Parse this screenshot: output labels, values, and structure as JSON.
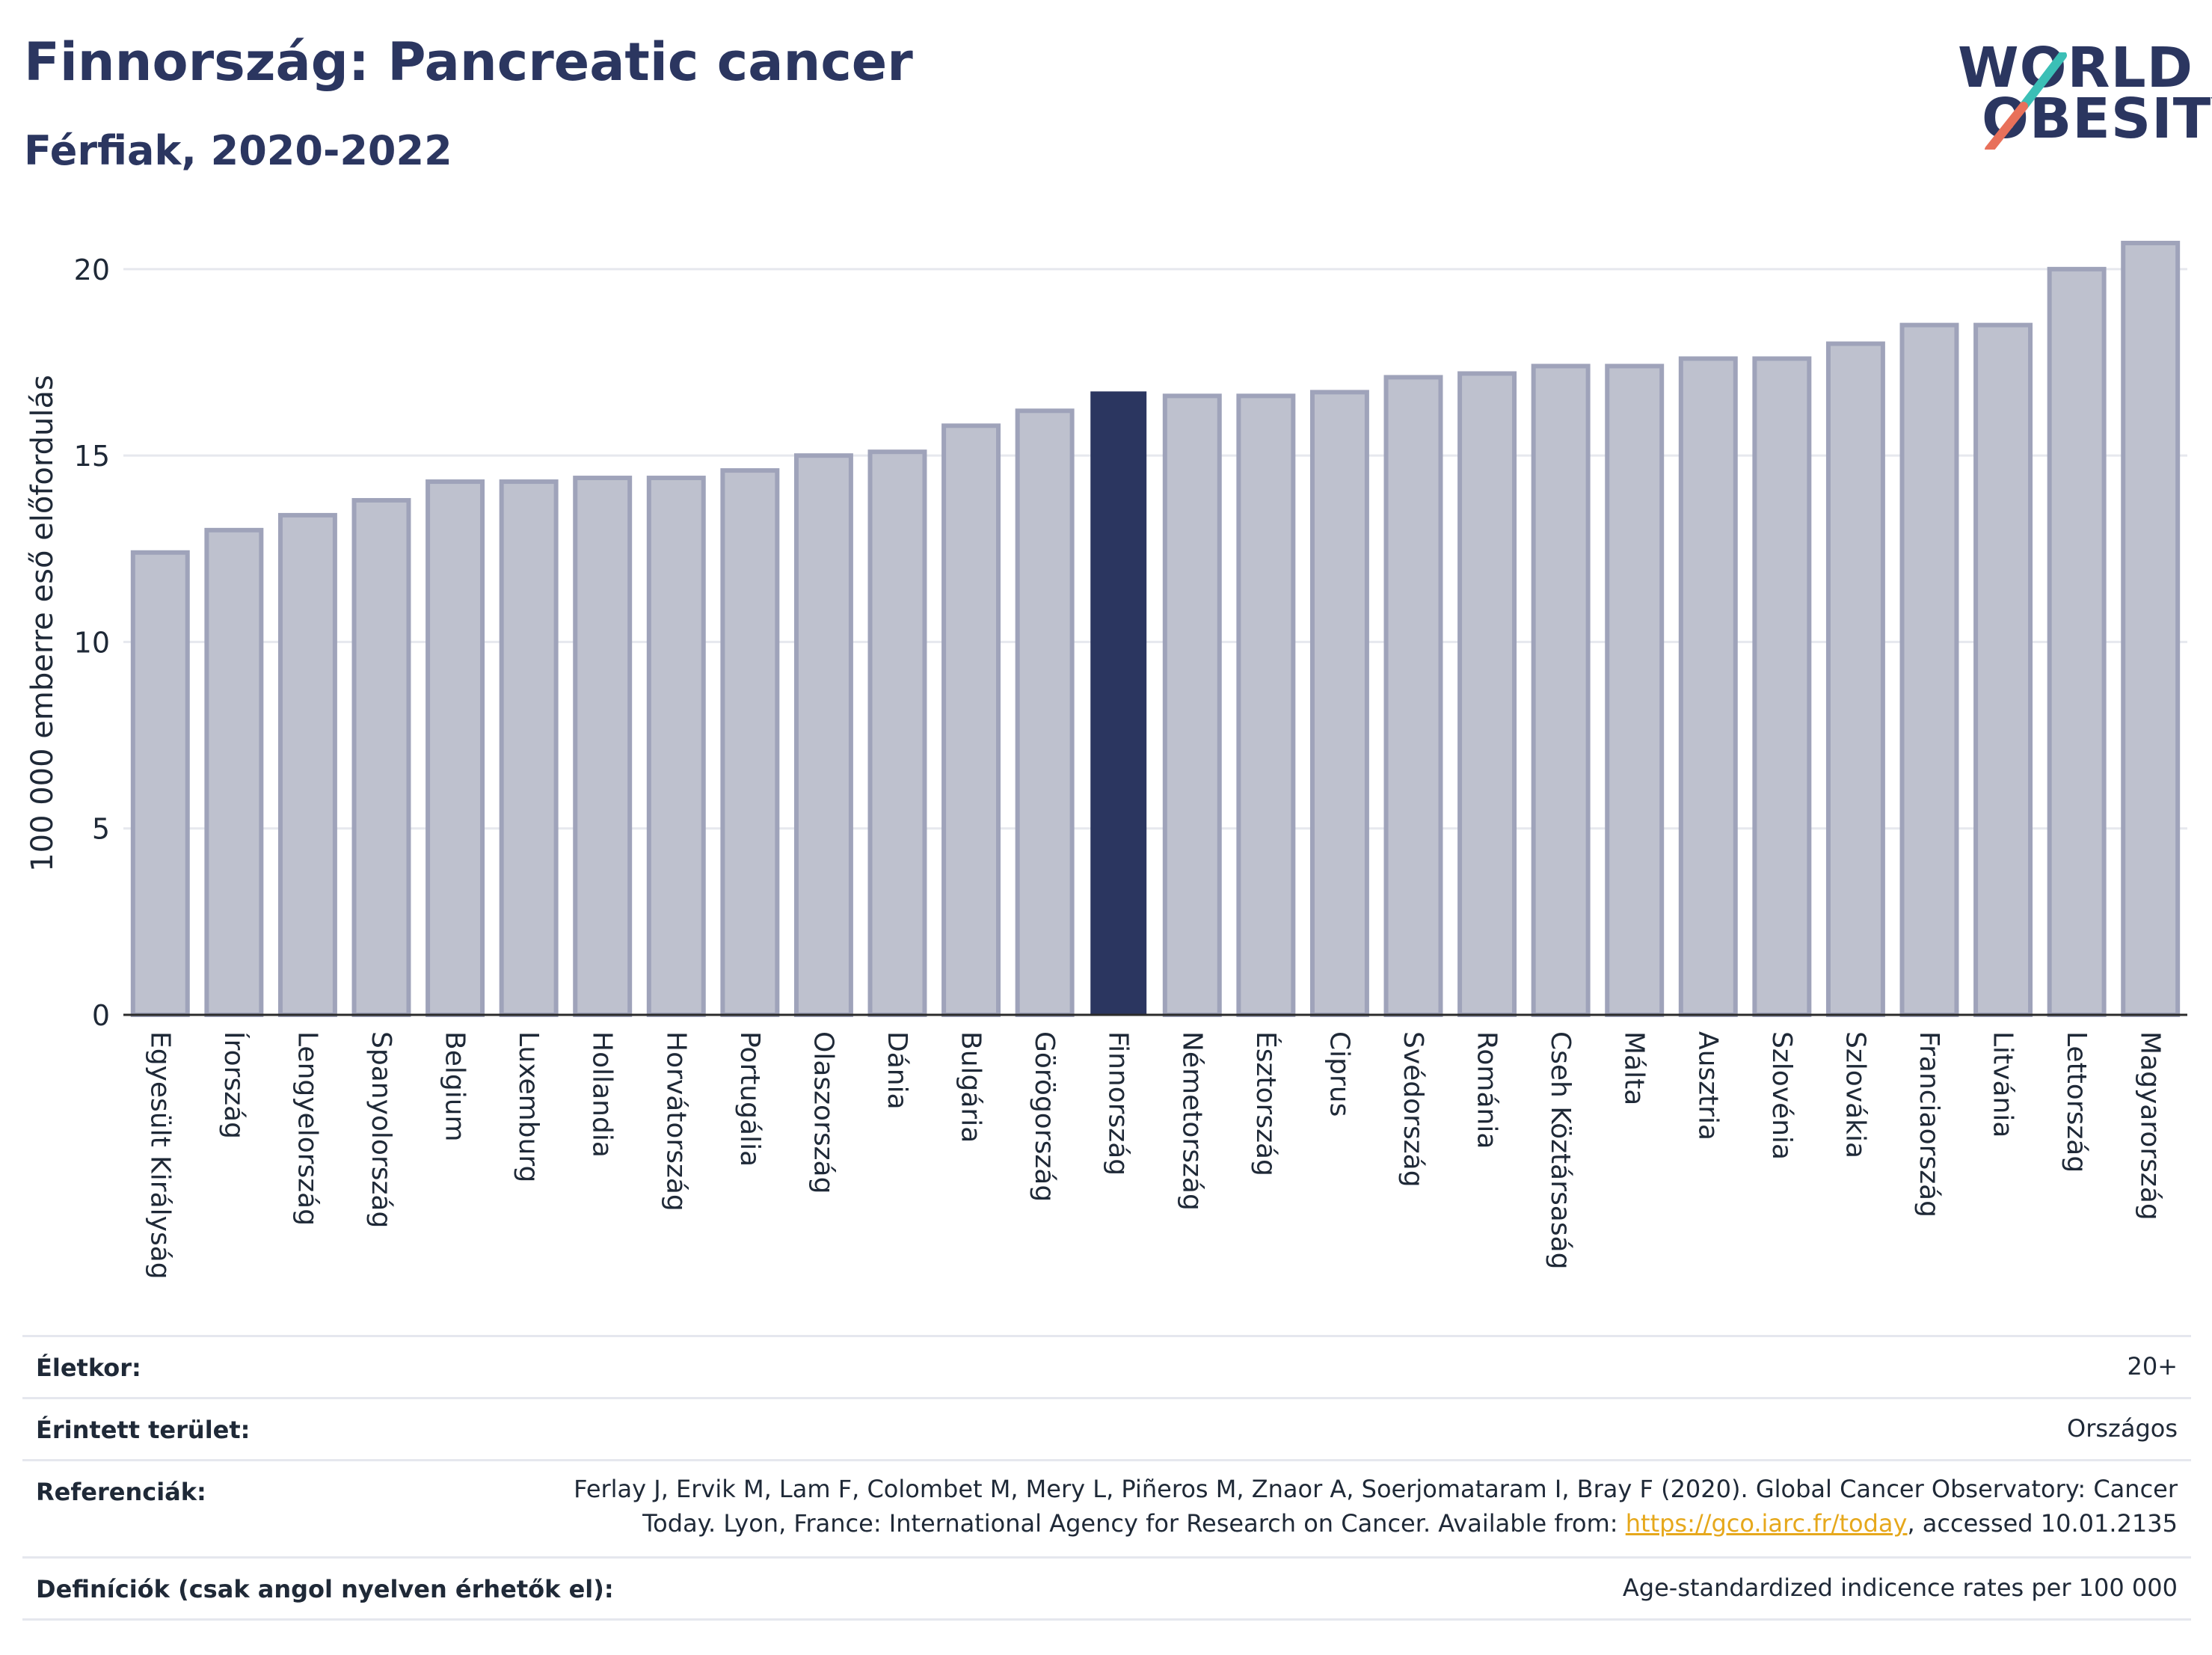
{
  "header": {
    "title": "Finnország: Pancreatic cancer",
    "subtitle": "Férfiak, 2020-2022"
  },
  "logo": {
    "line1": "WORLD",
    "line2": "OBESITY",
    "colors": {
      "text": "#2b3660",
      "slash_top": "#3bbfb6",
      "slash_bottom": "#e8705a"
    }
  },
  "colors": {
    "bar": "#bec1ce",
    "bar_border": "#9fa3ba",
    "highlight": "#2b3660",
    "grid": "#e6e8ee",
    "axis": "#2b2b2b"
  },
  "chart_data": {
    "type": "bar",
    "title": "",
    "xlabel": "",
    "ylabel": "100 000 emberre eső előfordulás",
    "ylim": [
      0,
      21
    ],
    "yticks": [
      0,
      5,
      10,
      15,
      20
    ],
    "grid": true,
    "highlight": "Finnország",
    "categories": [
      "Egyesült Királyság",
      "Írország",
      "Lengyelország",
      "Spanyolország",
      "Belgium",
      "Luxemburg",
      "Hollandia",
      "Horvátország",
      "Portugália",
      "Olaszország",
      "Dánia",
      "Bulgária",
      "Görögország",
      "Finnország",
      "Németország",
      "Észtország",
      "Ciprus",
      "Svédország",
      "Románia",
      "Cseh Köztársaság",
      "Málta",
      "Ausztria",
      "Szlovénia",
      "Szlovákia",
      "Franciaország",
      "Litvánia",
      "Lettország",
      "Magyarország"
    ],
    "values": [
      12.4,
      13.0,
      13.4,
      13.8,
      14.3,
      14.3,
      14.4,
      14.4,
      14.6,
      15.0,
      15.1,
      15.8,
      16.2,
      16.7,
      16.6,
      16.6,
      16.7,
      17.1,
      17.2,
      17.4,
      17.4,
      17.6,
      17.6,
      18.0,
      18.5,
      18.5,
      20.0,
      20.7
    ]
  },
  "meta": {
    "rows": [
      {
        "label": "Életkor:",
        "value": "20+"
      },
      {
        "label": "Érintett terület:",
        "value": "Országos"
      },
      {
        "label": "Referenciák:",
        "value_line1": "Ferlay J, Ervik M, Lam F, Colombet M, Mery L, Piñeros M, Znaor A, Soerjomataram I, Bray F (2020). Global Cancer Observatory: Cancer",
        "value_line2_pre": "Today. Lyon, France: International Agency for Research on Cancer. Available from: ",
        "link": "https://gco.iarc.fr/today",
        "value_line2_post": ", accessed 10.01.2135"
      },
      {
        "label": "Definíciók (csak angol nyelven érhetők el):",
        "value": "Age-standardized indicence rates per 100 000"
      }
    ]
  }
}
